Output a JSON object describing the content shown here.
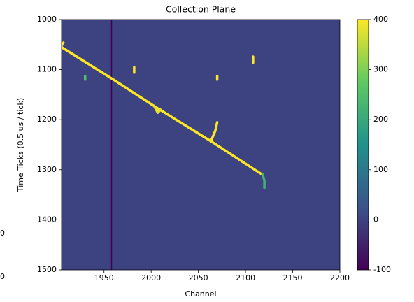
{
  "chart_data": {
    "type": "heatmap",
    "title": "Collection Plane",
    "xlabel": "Channel",
    "ylabel": "Time Ticks (0.5 us / tick)",
    "xlim": [
      1905,
      2200
    ],
    "xticks": [
      1950,
      2000,
      2050,
      2100,
      2150,
      2200
    ],
    "ylim": [
      1500,
      1000
    ],
    "yticks": [
      1000,
      1100,
      1200,
      1300,
      1400,
      1500
    ],
    "colorbar": {
      "lim": [
        -100,
        400
      ],
      "ticks": [
        -100,
        0,
        100,
        200,
        300,
        400
      ],
      "colormap": "viridis"
    },
    "background_value": 0,
    "tracks": [
      {
        "x": [
          1958,
          1958
        ],
        "y": [
          1000,
          1500
        ],
        "value": -100
      },
      {
        "x": [
          1905,
          1960,
          2005,
          2065,
          2118
        ],
        "y": [
          1055,
          1120,
          1175,
          1245,
          1310
        ],
        "value": 400
      },
      {
        "x": [
          1905,
          1907
        ],
        "y": [
          1052,
          1046
        ],
        "value": 400
      },
      {
        "x": [
          2003,
          2007,
          2010
        ],
        "y": [
          1172,
          1186,
          1180
        ],
        "value": 380
      },
      {
        "x": [
          2064,
          2068,
          2070
        ],
        "y": [
          1240,
          1222,
          1205
        ],
        "value": 400
      },
      {
        "x": [
          2118,
          2120,
          2120
        ],
        "y": [
          1308,
          1322,
          1336
        ],
        "value": 220
      },
      {
        "x": [
          1982,
          1982
        ],
        "y": [
          1095,
          1106
        ],
        "value": 400
      },
      {
        "x": [
          2070,
          2070
        ],
        "y": [
          1113,
          1120
        ],
        "value": 400
      },
      {
        "x": [
          2108,
          2108
        ],
        "y": [
          1074,
          1086
        ],
        "value": 400
      },
      {
        "x": [
          1930,
          1930
        ],
        "y": [
          1113,
          1120
        ],
        "value": 250
      }
    ],
    "stray_labels": [
      "0",
      "0"
    ]
  }
}
